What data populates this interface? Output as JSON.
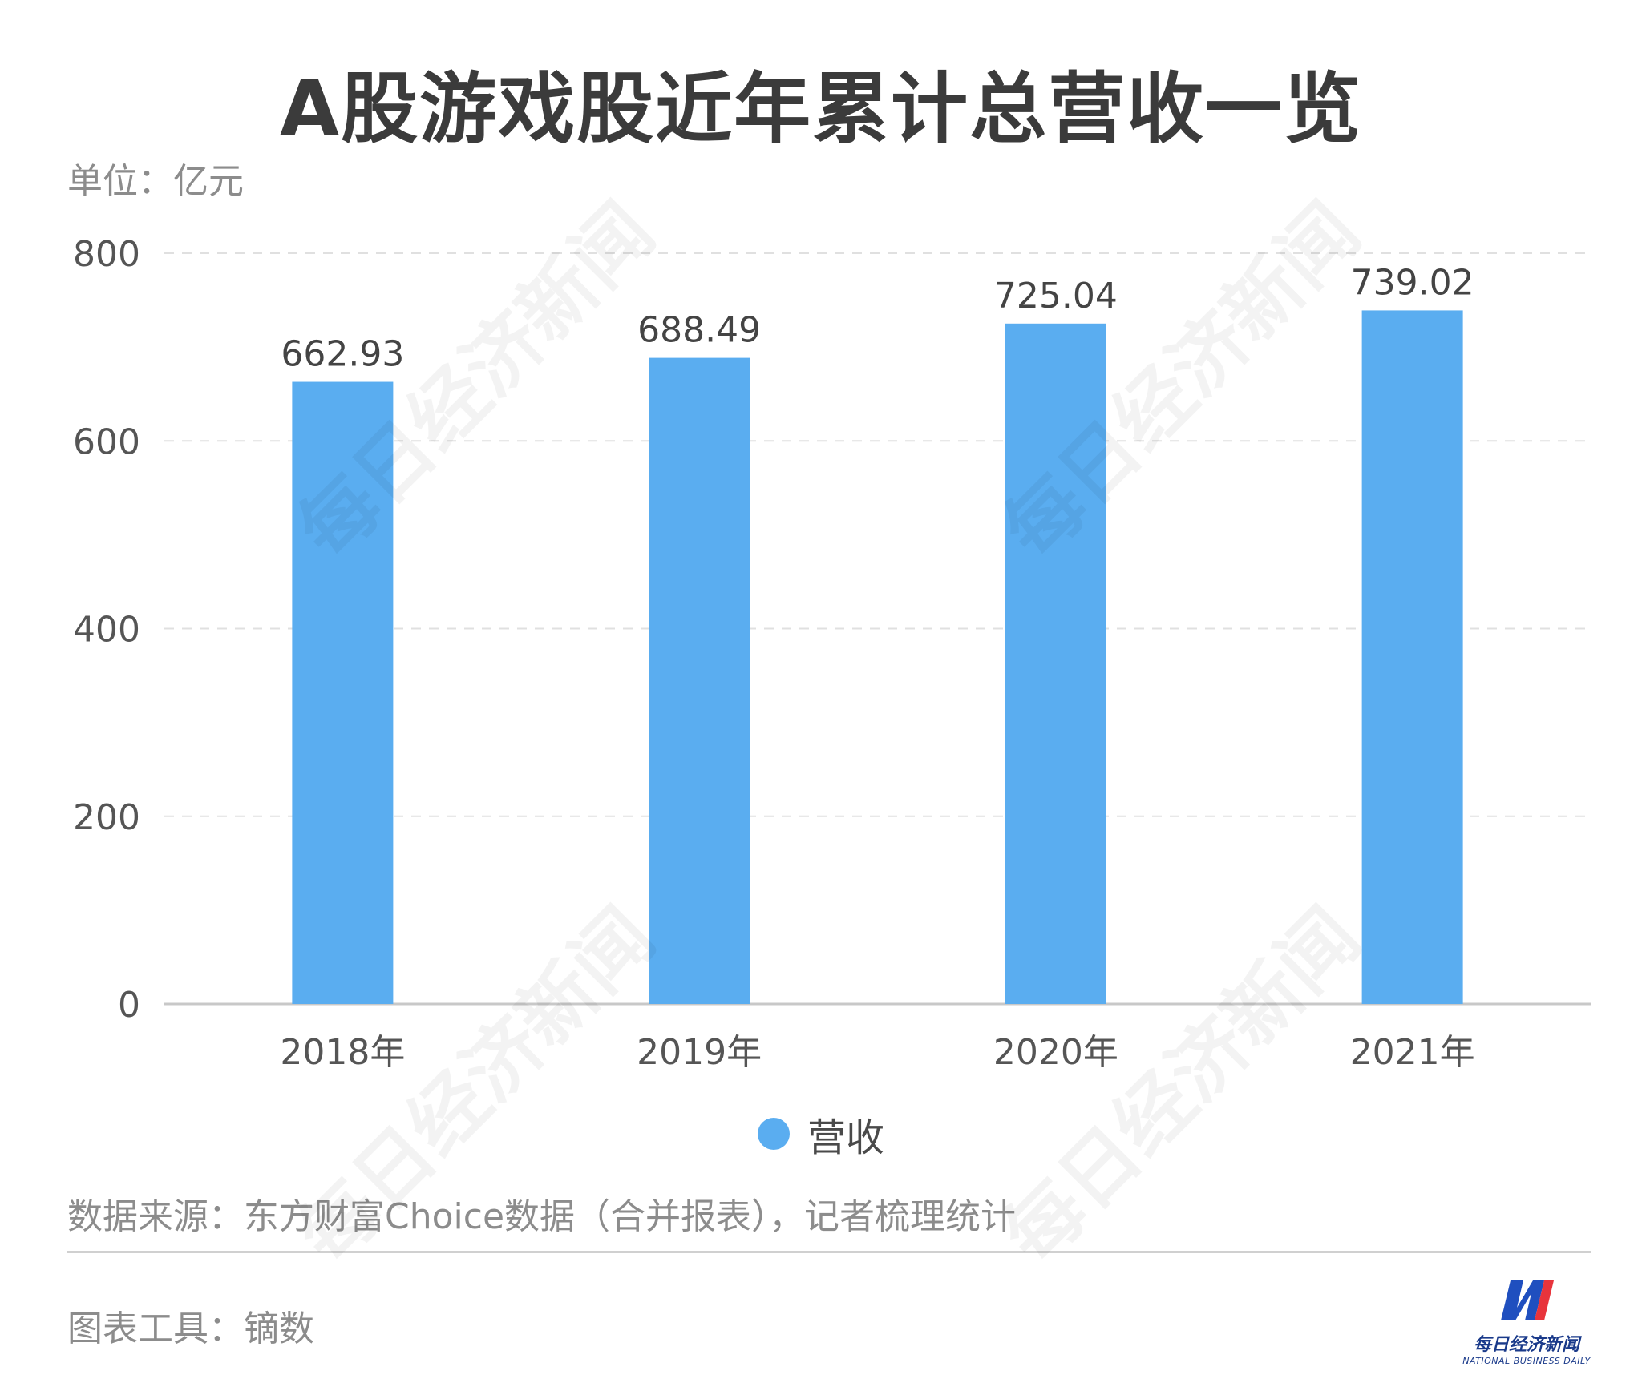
{
  "title": "A股游戏股近年累计总营收一览",
  "unit": "单位：亿元",
  "chart_data": {
    "type": "bar",
    "categories": [
      "2018年",
      "2019年",
      "2020年",
      "2021年"
    ],
    "series": [
      {
        "name": "营收",
        "values": [
          662.93,
          688.49,
          725.04,
          739.02
        ],
        "color": "#5aadf0"
      }
    ],
    "value_labels": [
      "662.93",
      "688.49",
      "725.04",
      "739.02"
    ],
    "y_ticks": [
      "0",
      "200",
      "400",
      "600",
      "800"
    ],
    "ylim": [
      0,
      800
    ],
    "grid": true,
    "legend_position": "bottom"
  },
  "source": "数据来源：东方财富Choice数据（合并报表），记者梳理统计",
  "tool": "图表工具：镝数",
  "brand": {
    "name": "每日经济新闻",
    "english": "NATIONAL BUSINESS DAILY"
  },
  "watermark": "每日经济新闻"
}
